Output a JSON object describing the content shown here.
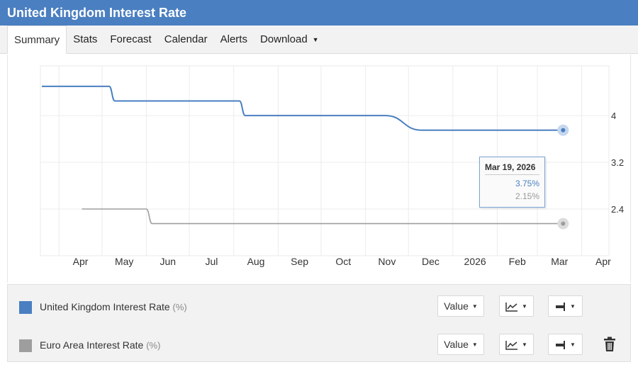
{
  "title": "United Kingdom Interest Rate",
  "tabs": [
    {
      "label": "Summary",
      "active": true
    },
    {
      "label": "Stats"
    },
    {
      "label": "Forecast"
    },
    {
      "label": "Calendar"
    },
    {
      "label": "Alerts"
    },
    {
      "label": "Download",
      "dropdown": true
    }
  ],
  "chart_data": {
    "type": "line",
    "x_tick_labels": [
      "Apr",
      "May",
      "Jun",
      "Jul",
      "Aug",
      "Sep",
      "Oct",
      "Nov",
      "Dec",
      "2026",
      "Feb",
      "Mar",
      "Apr"
    ],
    "y_tick_labels": [
      "4",
      "3.2",
      "2.4"
    ],
    "ylim": [
      1.6,
      4.85
    ],
    "y_axis_side": "right",
    "grid": true,
    "series": [
      {
        "name": "United Kingdom Interest Rate",
        "unit": "(%)",
        "color": "#4a7fc1",
        "points": [
          [
            "2025-03-20",
            4.5
          ],
          [
            "2025-05-06",
            4.5
          ],
          [
            "2025-05-10",
            4.25
          ],
          [
            "2025-08-05",
            4.25
          ],
          [
            "2025-08-09",
            4.0
          ],
          [
            "2025-11-15",
            4.0
          ],
          [
            "2025-12-10",
            3.75
          ],
          [
            "2026-03-19",
            3.75
          ]
        ]
      },
      {
        "name": "Euro Area Interest Rate",
        "unit": "(%)",
        "color": "#9e9e9e",
        "points": [
          [
            "2025-04-17",
            2.4
          ],
          [
            "2025-06-01",
            2.4
          ],
          [
            "2025-06-05",
            2.15
          ],
          [
            "2026-03-19",
            2.15
          ]
        ]
      }
    ],
    "tooltip": {
      "date": "Mar 19, 2026",
      "values": [
        "3.75%",
        "2.15%"
      ]
    }
  },
  "legend_controls": {
    "value_label": "Value",
    "chart_type_icon": "line-chart-icon",
    "axis_icon": "axis-position-icon",
    "delete_icon": "trash-icon"
  }
}
